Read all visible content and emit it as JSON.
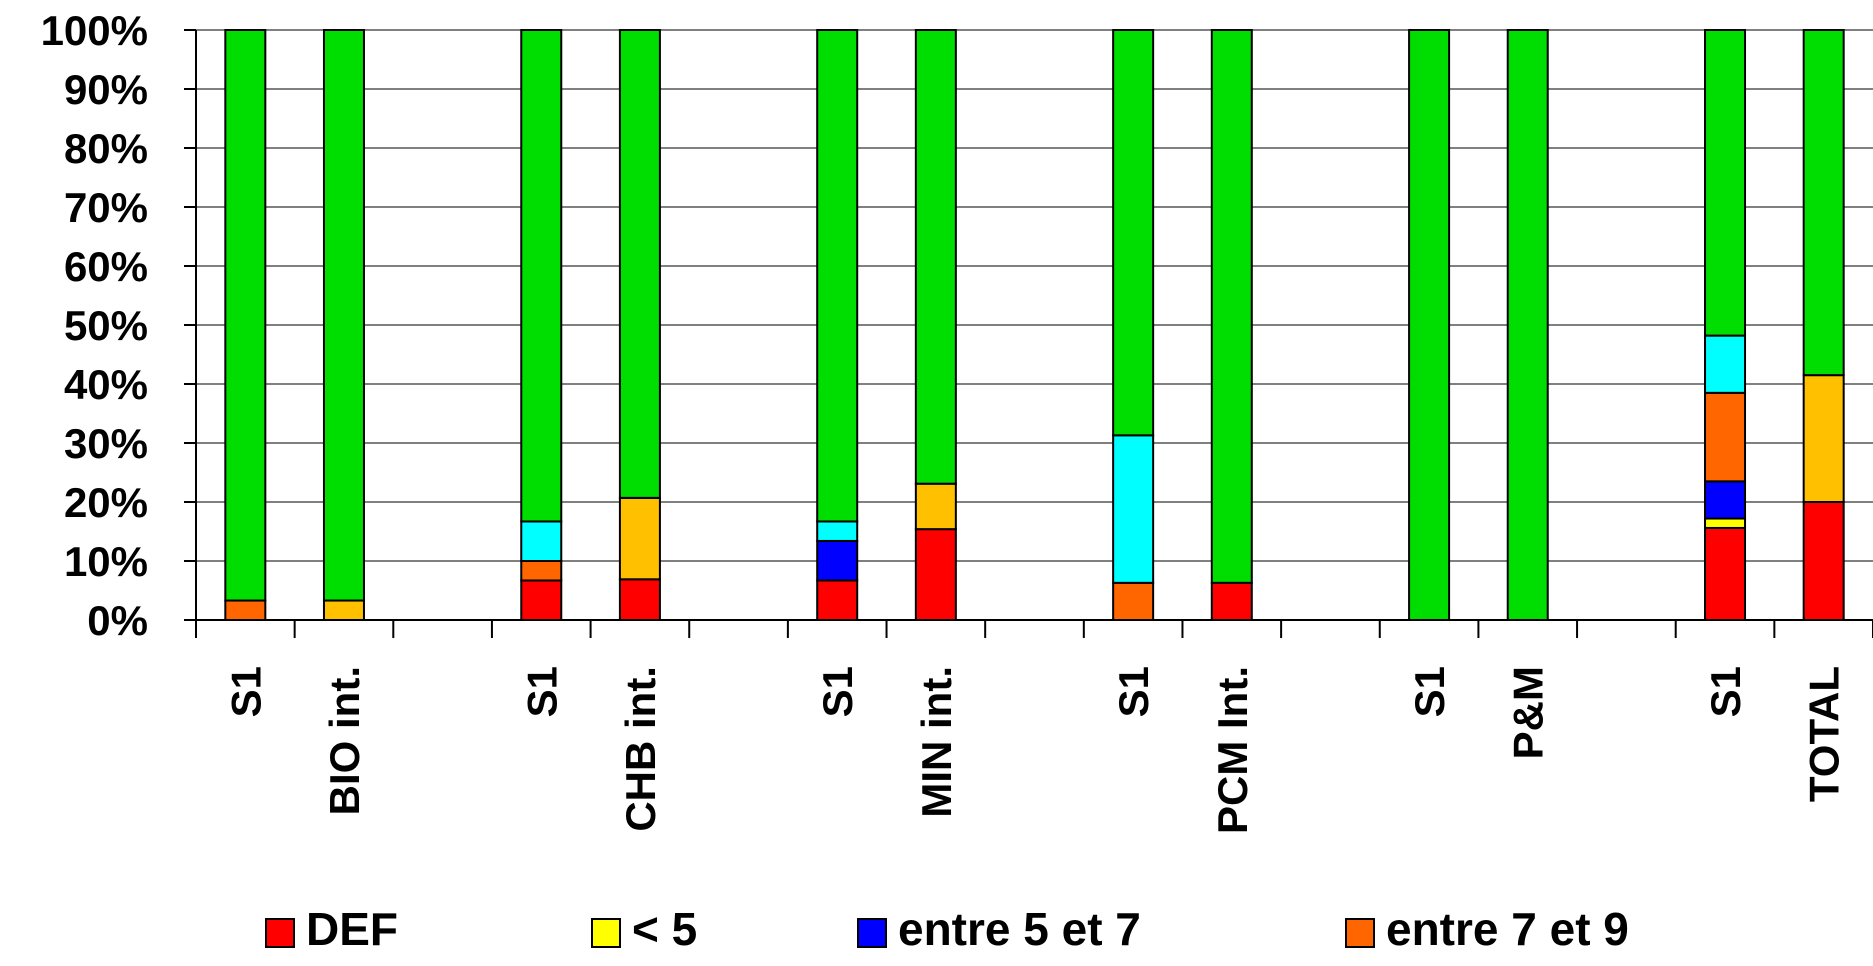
{
  "chart_data": {
    "type": "bar",
    "stacked": true,
    "percent": true,
    "categories": [
      "S1",
      "BIO int.",
      "",
      "S1",
      "CHB int.",
      "",
      "S1",
      "MIN int.",
      "",
      "S1",
      "PCM Int.",
      "",
      "S1",
      "P&M",
      "",
      "S1",
      "TOTAL"
    ],
    "ylim": [
      0,
      100
    ],
    "yticks": [
      "0%",
      "10%",
      "20%",
      "30%",
      "40%",
      "50%",
      "60%",
      "70%",
      "80%",
      "90%",
      "100%"
    ],
    "grid": true,
    "legend_position": "bottom",
    "series": [
      {
        "name": "DEF",
        "color": "#ff0000",
        "values": [
          0,
          0,
          0,
          6.7,
          6.9,
          0,
          6.7,
          15.4,
          0,
          0,
          6.3,
          0,
          0,
          0,
          0,
          15.6,
          20
        ]
      },
      {
        "name": "< 5",
        "color": "#ffff00",
        "values": [
          0,
          0,
          0,
          0,
          0,
          0,
          0,
          0,
          0,
          0,
          0,
          0,
          0,
          0,
          0,
          1.6,
          0
        ]
      },
      {
        "name": "entre 5 et 7",
        "color": "#0000ff",
        "values": [
          0,
          0,
          0,
          0,
          0,
          0,
          6.7,
          0,
          0,
          0,
          0,
          0,
          0,
          0,
          0,
          6.3,
          0
        ]
      },
      {
        "name": "entre 7 et 9",
        "color": "#ff6600",
        "values": [
          3.3,
          0,
          0,
          3.3,
          0,
          0,
          0,
          0,
          0,
          6.3,
          0,
          0,
          0,
          0,
          0,
          15,
          0
        ]
      },
      {
        "name": "",
        "color": "#ffc000",
        "values": [
          0,
          3.3,
          0,
          0,
          13.8,
          0,
          0,
          7.7,
          0,
          0,
          0,
          0,
          0,
          0,
          0,
          0,
          21.5
        ]
      },
      {
        "name": "",
        "color": "#00ffff",
        "values": [
          0,
          0,
          0,
          6.7,
          0,
          0,
          3.3,
          0,
          0,
          25,
          0,
          0,
          0,
          0,
          0,
          9.7,
          0
        ]
      },
      {
        "name": "",
        "color": "#00dd00",
        "values": [
          96.7,
          96.7,
          0,
          83.3,
          79.3,
          0,
          83.3,
          76.9,
          0,
          68.7,
          93.7,
          0,
          100,
          100,
          0,
          51.8,
          58.5
        ]
      }
    ],
    "legend": [
      "DEF",
      "< 5",
      "entre 5 et 7",
      "entre 7 et 9"
    ]
  }
}
